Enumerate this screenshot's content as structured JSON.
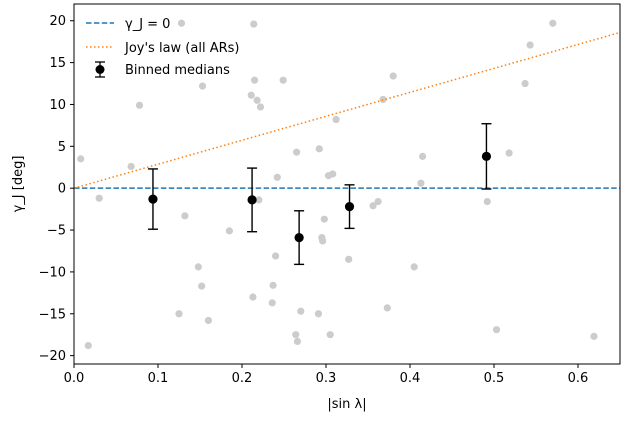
{
  "chart_data": {
    "type": "scatter",
    "xlabel": "|sin λ|",
    "ylabel": "γ_J [deg]",
    "xlim": [
      0.0,
      0.65
    ],
    "ylim": [
      -21,
      22
    ],
    "xticks": [
      0.0,
      0.1,
      0.2,
      0.3,
      0.4,
      0.5,
      0.6
    ],
    "xtick_labels": [
      "0.0",
      "0.1",
      "0.2",
      "0.3",
      "0.4",
      "0.5",
      "0.6"
    ],
    "yticks": [
      -20,
      -15,
      -10,
      -5,
      0,
      5,
      10,
      15,
      20
    ],
    "ytick_labels": [
      "−20",
      "−15",
      "−10",
      "−5",
      "0",
      "5",
      "10",
      "15",
      "20"
    ],
    "grid": false,
    "legend_position": "top-left",
    "colors": {
      "scatter": "#cccccc",
      "zero_line": "#1f77b4",
      "joys_law": "#ff7f0e",
      "medians": "#000000"
    },
    "scatter_points": [
      [
        0.008,
        3.5
      ],
      [
        0.017,
        -18.8
      ],
      [
        0.03,
        -1.2
      ],
      [
        0.068,
        2.6
      ],
      [
        0.078,
        9.9
      ],
      [
        0.125,
        -15.0
      ],
      [
        0.128,
        19.7
      ],
      [
        0.132,
        -3.3
      ],
      [
        0.148,
        -9.4
      ],
      [
        0.152,
        -11.7
      ],
      [
        0.153,
        12.2
      ],
      [
        0.16,
        -15.8
      ],
      [
        0.185,
        -5.1
      ],
      [
        0.211,
        11.1
      ],
      [
        0.213,
        -13.0
      ],
      [
        0.214,
        19.6
      ],
      [
        0.215,
        12.9
      ],
      [
        0.218,
        10.5
      ],
      [
        0.22,
        -1.4
      ],
      [
        0.222,
        9.7
      ],
      [
        0.236,
        -13.7
      ],
      [
        0.237,
        -11.6
      ],
      [
        0.24,
        -8.1
      ],
      [
        0.242,
        1.3
      ],
      [
        0.249,
        12.9
      ],
      [
        0.264,
        -17.5
      ],
      [
        0.265,
        4.3
      ],
      [
        0.266,
        -18.3
      ],
      [
        0.27,
        -14.7
      ],
      [
        0.291,
        -15.0
      ],
      [
        0.292,
        4.7
      ],
      [
        0.295,
        -5.9
      ],
      [
        0.296,
        -6.3
      ],
      [
        0.298,
        -3.7
      ],
      [
        0.303,
        1.5
      ],
      [
        0.305,
        -17.5
      ],
      [
        0.308,
        1.7
      ],
      [
        0.312,
        8.2
      ],
      [
        0.327,
        -8.5
      ],
      [
        0.356,
        -2.1
      ],
      [
        0.362,
        -1.6
      ],
      [
        0.368,
        10.6
      ],
      [
        0.373,
        -14.3
      ],
      [
        0.38,
        13.4
      ],
      [
        0.405,
        -9.4
      ],
      [
        0.413,
        0.6
      ],
      [
        0.415,
        3.8
      ],
      [
        0.492,
        -1.6
      ],
      [
        0.503,
        -16.9
      ],
      [
        0.518,
        4.2
      ],
      [
        0.537,
        12.5
      ],
      [
        0.543,
        17.1
      ],
      [
        0.57,
        19.7
      ],
      [
        0.619,
        -17.7
      ]
    ],
    "series": [
      {
        "name": "γ_J = 0",
        "type": "line",
        "style": "dashed",
        "x": [
          0.0,
          0.65
        ],
        "y": [
          0.0,
          0.0
        ]
      },
      {
        "name": "Joy's law (all ARs)",
        "type": "line",
        "style": "dotted",
        "x": [
          0.0,
          0.65
        ],
        "y": [
          0.0,
          18.6
        ]
      },
      {
        "name": "Binned medians",
        "type": "errorbar",
        "x": [
          0.094,
          0.212,
          0.268,
          0.328,
          0.491
        ],
        "y": [
          -1.3,
          -1.4,
          -5.9,
          -2.2,
          3.8
        ],
        "yerr": [
          3.6,
          3.8,
          3.2,
          2.6,
          3.9
        ]
      }
    ],
    "legend": {
      "zero_line_label": "γ_J = 0",
      "joys_law_label": "Joy's law (all ARs)",
      "medians_label": "Binned medians"
    }
  }
}
